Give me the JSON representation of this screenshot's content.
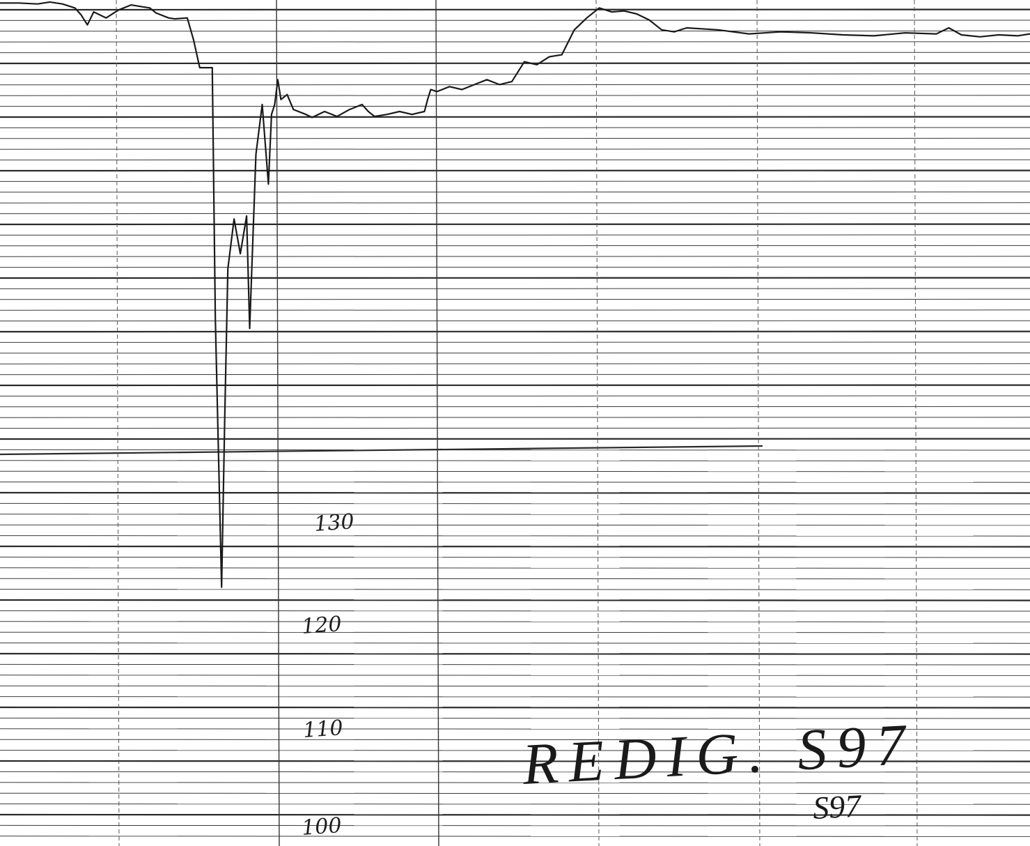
{
  "chart_data": {
    "type": "line",
    "title": "",
    "xlabel": "",
    "ylabel": "",
    "y_tick_labels": [
      "130",
      "120",
      "110",
      "100"
    ],
    "ylim": [
      98,
      183
    ],
    "grid": true,
    "annotations": {
      "stamp": "REDIG. S97",
      "stamp_sub": "S97"
    },
    "series": [
      {
        "points": [
          [
            0,
            182.7
          ],
          [
            3,
            182.7
          ],
          [
            6,
            182.6
          ],
          [
            8,
            182.8
          ],
          [
            10,
            182.6
          ],
          [
            12,
            182.2
          ],
          [
            13,
            181.5
          ],
          [
            14,
            180.5
          ],
          [
            15,
            181.8
          ],
          [
            17,
            181.2
          ],
          [
            19,
            182.0
          ],
          [
            21,
            182.5
          ],
          [
            22,
            182.4
          ],
          [
            24,
            182.2
          ],
          [
            25,
            181.7
          ],
          [
            27,
            181.2
          ],
          [
            28,
            181.1
          ],
          [
            30,
            181.2
          ],
          [
            31,
            179.0
          ],
          [
            32,
            176.2
          ],
          [
            34,
            176.2
          ],
          [
            34.5,
            151.0
          ],
          [
            35.5,
            124.0
          ],
          [
            36.0,
            141.0
          ],
          [
            36.5,
            156.0
          ],
          [
            37.5,
            161.0
          ],
          [
            38.5,
            157.5
          ],
          [
            39.5,
            161.3
          ],
          [
            40.0,
            150.0
          ],
          [
            41.0,
            167.5
          ],
          [
            42.0,
            172.5
          ],
          [
            43.0,
            164.5
          ],
          [
            43.5,
            171.5
          ],
          [
            44.0,
            172.5
          ],
          [
            44.5,
            175.0
          ],
          [
            45.0,
            173.0
          ],
          [
            46.0,
            173.5
          ],
          [
            47.0,
            172.0
          ],
          [
            49.0,
            171.5
          ],
          [
            50.0,
            171.2
          ],
          [
            52.0,
            171.8
          ],
          [
            54.0,
            171.3
          ],
          [
            56.0,
            172.0
          ],
          [
            58.0,
            172.5
          ],
          [
            59.0,
            171.8
          ],
          [
            60.0,
            171.3
          ],
          [
            62.0,
            171.5
          ],
          [
            64.0,
            171.8
          ],
          [
            66.0,
            171.5
          ],
          [
            68.0,
            171.8
          ],
          [
            68.5,
            173.0
          ],
          [
            69.0,
            174.0
          ],
          [
            70.0,
            173.8
          ],
          [
            72.0,
            174.3
          ],
          [
            74.0,
            174.0
          ],
          [
            76.0,
            174.5
          ],
          [
            78.0,
            175.0
          ],
          [
            80.0,
            174.5
          ],
          [
            82.0,
            174.8
          ],
          [
            84.0,
            176.8
          ],
          [
            86.0,
            176.5
          ],
          [
            88.0,
            177.3
          ],
          [
            90.0,
            177.5
          ],
          [
            92.0,
            180.0
          ],
          [
            94.0,
            181.2
          ],
          [
            96.0,
            182.2
          ],
          [
            98.0,
            181.8
          ],
          [
            100.0,
            181.9
          ],
          [
            102.0,
            181.6
          ],
          [
            104.0,
            181.0
          ],
          [
            106.0,
            180.0
          ],
          [
            108.0,
            179.8
          ],
          [
            110.0,
            180.2
          ],
          [
            115.0,
            180.0
          ],
          [
            120.0,
            179.6
          ],
          [
            125.0,
            179.8
          ],
          [
            130.0,
            179.7
          ],
          [
            135.0,
            179.5
          ],
          [
            140.0,
            179.4
          ],
          [
            145.0,
            179.7
          ],
          [
            150.0,
            179.6
          ],
          [
            152.0,
            180.2
          ],
          [
            154.0,
            179.5
          ],
          [
            157.0,
            179.3
          ],
          [
            160.0,
            179.5
          ],
          [
            163.0,
            179.4
          ],
          [
            165.0,
            179.6
          ]
        ]
      }
    ]
  }
}
